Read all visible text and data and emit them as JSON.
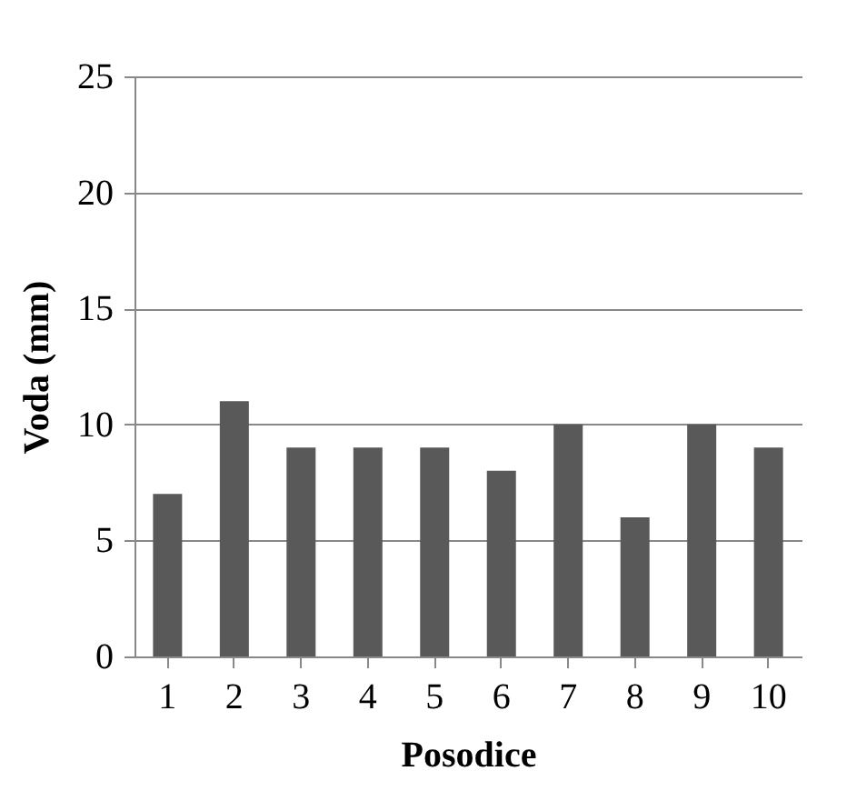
{
  "chart_data": {
    "type": "bar",
    "xlabel": "Posodice",
    "ylabel": "Voda (mm)",
    "categories": [
      "1",
      "2",
      "3",
      "4",
      "5",
      "6",
      "7",
      "8",
      "9",
      "10"
    ],
    "values": [
      7,
      11,
      9,
      9,
      9,
      8,
      10,
      6,
      10,
      9
    ],
    "color": "#595959",
    "ylim": [
      0,
      25
    ],
    "yticks": [
      0,
      5,
      10,
      15,
      20,
      25
    ],
    "grid": "y"
  }
}
